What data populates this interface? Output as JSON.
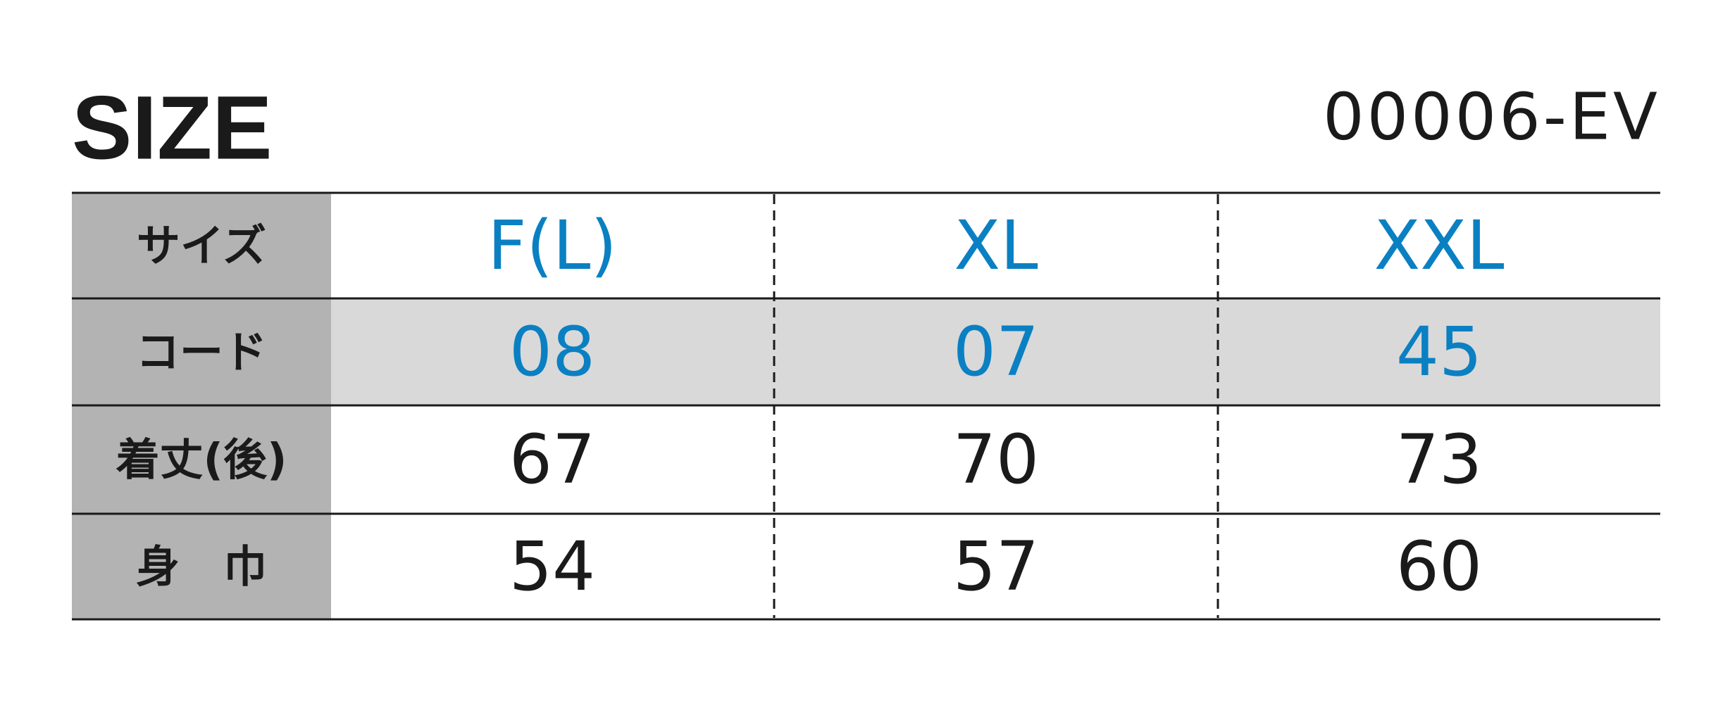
{
  "header": {
    "title": "SIZE",
    "code": "00006-EV"
  },
  "table": {
    "rows": [
      [
        "サイズ",
        "F(L)",
        "XL",
        "XXL"
      ],
      [
        "コード",
        "08",
        "07",
        "45"
      ],
      [
        "着丈(後)",
        "67",
        "70",
        "73"
      ],
      [
        "身　巾",
        "54",
        "57",
        "60"
      ]
    ]
  }
}
